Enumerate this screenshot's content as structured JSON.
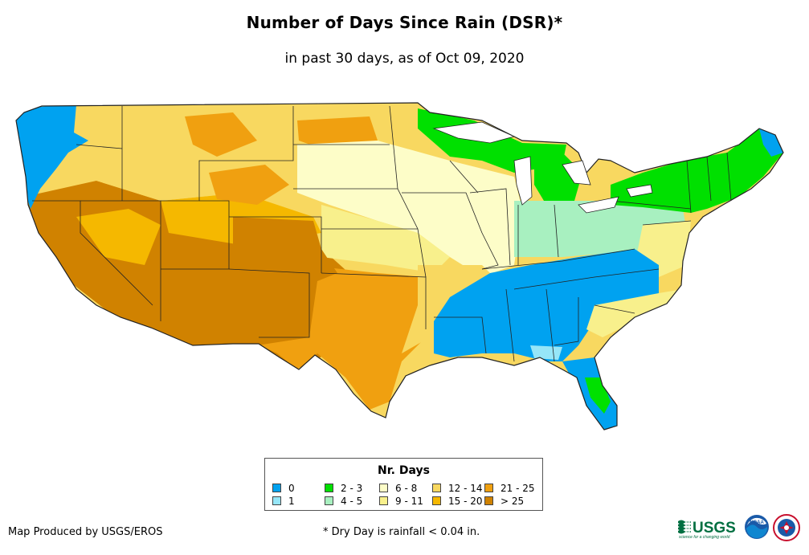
{
  "title": "Number of Days Since Rain (DSR)*",
  "subtitle": "in past 30 days, as of Oct 09, 2020",
  "legend": {
    "title": "Nr. Days",
    "items": [
      {
        "label": "0",
        "color": "#00a2f0"
      },
      {
        "label": "1",
        "color": "#96e6f8"
      },
      {
        "label": "2 - 3",
        "color": "#00e000"
      },
      {
        "label": "4 - 5",
        "color": "#a8f0c0"
      },
      {
        "label": "6 - 8",
        "color": "#fdfdc8"
      },
      {
        "label": "9 - 11",
        "color": "#f8f08c"
      },
      {
        "label": "12 - 14",
        "color": "#f8d860"
      },
      {
        "label": "15 - 20",
        "color": "#f5b800"
      },
      {
        "label": "21 - 25",
        "color": "#f0a010"
      },
      {
        "label": "> 25",
        "color": "#d08200"
      }
    ]
  },
  "footer": {
    "credit": "Map Produced by USGS/EROS",
    "note": "* Dry Day is rainfall < 0.04 in."
  },
  "logos": {
    "usgs_wordmark": "≈USGS",
    "usgs_tagline": "science for a changing world",
    "noaa": "NOAA"
  },
  "map_regions": [
    {
      "name": "pacific-northwest-coast",
      "days_class": "0"
    },
    {
      "name": "california-nevada-arizona",
      "days_class": "> 25"
    },
    {
      "name": "intermountain-west",
      "days_class": "15 - 20"
    },
    {
      "name": "northern-rockies",
      "days_class": "12 - 14"
    },
    {
      "name": "northern-plains",
      "days_class": "6 - 8"
    },
    {
      "name": "southern-plains",
      "days_class": "21 - 25"
    },
    {
      "name": "upper-midwest",
      "days_class": "2 - 3"
    },
    {
      "name": "ohio-valley",
      "days_class": "4 - 5"
    },
    {
      "name": "southeast",
      "days_class": "0"
    },
    {
      "name": "northeast",
      "days_class": "2 - 3"
    }
  ]
}
